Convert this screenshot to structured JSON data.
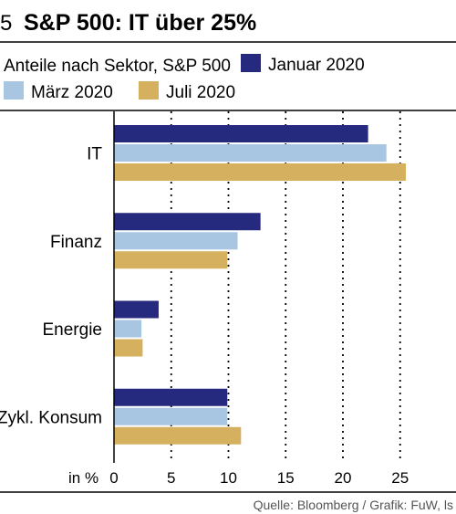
{
  "header": {
    "number": "5",
    "title": "S&P 500: IT über 25%"
  },
  "legend": {
    "caption": "Anteile nach Sektor, S&P 500"
  },
  "footer": {
    "source": "Quelle: Bloomberg / Grafik: FuW, ls"
  },
  "colors": {
    "january": "#262a7f",
    "march": "#a8c6e2",
    "july": "#d5b05e",
    "rule": "#000000"
  },
  "chart_data": {
    "type": "bar",
    "orientation": "horizontal",
    "title": "S&P 500: IT über 25%",
    "subtitle": "Anteile nach Sektor, S&P 500",
    "categories": [
      "IT",
      "Finanz",
      "Energie",
      "Zykl. Konsum"
    ],
    "series": [
      {
        "name": "Januar 2020",
        "color": "#262a7f",
        "values": [
          22.2,
          12.8,
          3.9,
          9.9
        ]
      },
      {
        "name": "März 2020",
        "color": "#a8c6e2",
        "values": [
          23.8,
          10.8,
          2.4,
          9.9
        ]
      },
      {
        "name": "Juli 2020",
        "color": "#d5b05e",
        "values": [
          25.5,
          9.9,
          2.5,
          11.1
        ]
      }
    ],
    "xlabel": "in %",
    "xlim": [
      0,
      29
    ],
    "xticks": [
      0,
      5,
      10,
      15,
      20,
      25
    ],
    "xtick_labels": [
      "0",
      "5",
      "10",
      "15",
      "20",
      "25"
    ],
    "grid": "vertical dotted",
    "legend_position": "top"
  }
}
